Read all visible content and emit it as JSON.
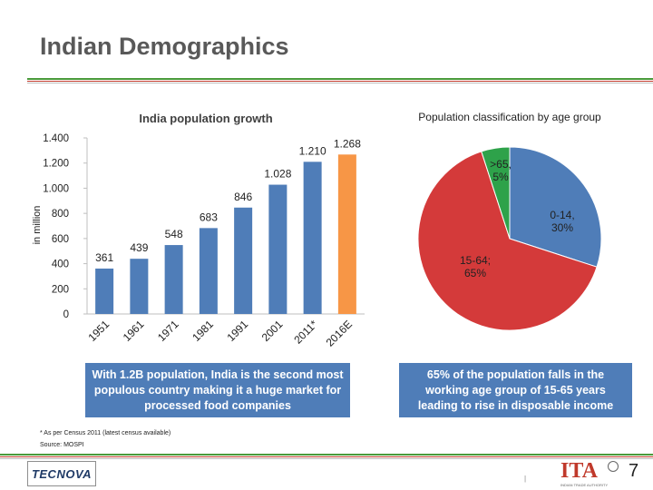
{
  "slide": {
    "title": "Indian Demographics",
    "page_number": "7",
    "footnote": "* As per Census 2011 (latest census available)",
    "source": "Source: MOSPI",
    "tiny_mark": "|"
  },
  "logos": {
    "left_name": "TECNOVA",
    "right_name": "ITA",
    "right_sub": "INDIAN TRADE AUTHORITY"
  },
  "captions": {
    "left": "With 1.2B population, India is the second most populous country making it a huge market for processed food companies",
    "right": "65% of the population falls in the working age group of 15-65 years leading to rise in disposable income"
  },
  "colors": {
    "blue": "#4f7db8",
    "orange": "#f79646",
    "red": "#d43a3a",
    "green": "#2ea24a",
    "title_gray": "#595959"
  },
  "chart_data": [
    {
      "type": "bar",
      "title": "India population growth",
      "ylabel": "in million",
      "xlabel": "",
      "categories": [
        "1951",
        "1961",
        "1971",
        "1981",
        "1991",
        "2001",
        "2011*",
        "2016E"
      ],
      "values": [
        361,
        439,
        548,
        683,
        846,
        1028,
        1210,
        1268
      ],
      "value_labels": [
        "361",
        "439",
        "548",
        "683",
        "846",
        "1.028",
        "1.210",
        "1.268"
      ],
      "bar_colors": [
        "#4f7db8",
        "#4f7db8",
        "#4f7db8",
        "#4f7db8",
        "#4f7db8",
        "#4f7db8",
        "#4f7db8",
        "#f79646"
      ],
      "ylim": [
        0,
        1400
      ],
      "yticks": [
        0,
        200,
        400,
        600,
        800,
        1000,
        1200,
        1400
      ],
      "ytick_labels": [
        "0",
        "200",
        "400",
        "600",
        "800",
        "1.000",
        "1.200",
        "1.400"
      ],
      "grid": false,
      "legend": "none"
    },
    {
      "type": "pie",
      "title": "Population classification by age group",
      "slices": [
        {
          "label": "0-14,",
          "pct_label": "30%",
          "value": 30,
          "color": "#4f7db8"
        },
        {
          "label": "15-64;",
          "pct_label": "65%",
          "value": 65,
          "color": "#d43a3a"
        },
        {
          "label": ">65,",
          "pct_label": "5%",
          "value": 5,
          "color": "#2ea24a"
        }
      ],
      "legend": "none"
    }
  ]
}
